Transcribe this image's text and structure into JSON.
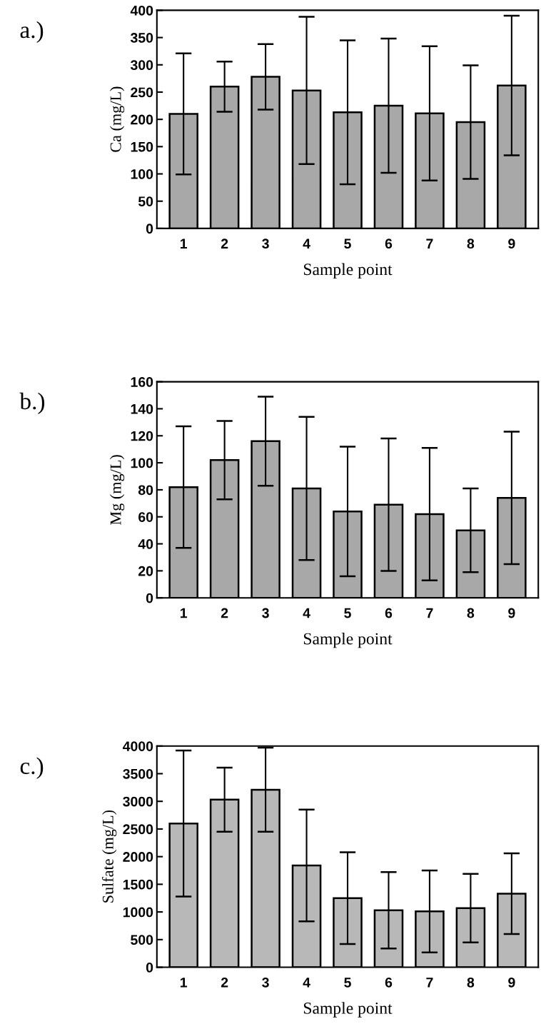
{
  "chart_data": [
    {
      "type": "bar",
      "title": "a.)",
      "xlabel": "Sample point",
      "ylabel": "Ca (mg/L)",
      "categories": [
        "1",
        "2",
        "3",
        "4",
        "5",
        "6",
        "7",
        "8",
        "9"
      ],
      "values": [
        210,
        260,
        278,
        253,
        213,
        225,
        211,
        195,
        262
      ],
      "errors": [
        111,
        46,
        60,
        135,
        132,
        123,
        123,
        104,
        128
      ],
      "color": "#a8a8a8",
      "ylim": [
        0,
        400
      ],
      "yticks": [
        0,
        50,
        100,
        150,
        200,
        250,
        300,
        350,
        400
      ],
      "grid": false,
      "legend": false
    },
    {
      "type": "bar",
      "title": "b.)",
      "xlabel": "Sample point",
      "ylabel": "Mg (mg/L)",
      "categories": [
        "1",
        "2",
        "3",
        "4",
        "5",
        "6",
        "7",
        "8",
        "9"
      ],
      "values": [
        82,
        102,
        116,
        81,
        64,
        69,
        62,
        50,
        74
      ],
      "errors": [
        45,
        29,
        33,
        53,
        48,
        49,
        49,
        31,
        49
      ],
      "color": "#a8a8a8",
      "ylim": [
        0,
        160
      ],
      "yticks": [
        0,
        20,
        40,
        60,
        80,
        100,
        120,
        140,
        160
      ],
      "grid": false,
      "legend": false
    },
    {
      "type": "bar",
      "title": "c.)",
      "xlabel": "Sample point",
      "ylabel": "Sulfate (mg/L)",
      "categories": [
        "1",
        "2",
        "3",
        "4",
        "5",
        "6",
        "7",
        "8",
        "9"
      ],
      "values": [
        2600,
        3030,
        3210,
        1840,
        1250,
        1030,
        1010,
        1070,
        1330
      ],
      "errors": [
        1320,
        580,
        760,
        1010,
        830,
        690,
        740,
        620,
        730
      ],
      "color": "#b8b8b8",
      "ylim": [
        0,
        4000
      ],
      "yticks": [
        0,
        500,
        1000,
        1500,
        2000,
        2500,
        3000,
        3500,
        4000
      ],
      "grid": false,
      "legend": false
    }
  ]
}
